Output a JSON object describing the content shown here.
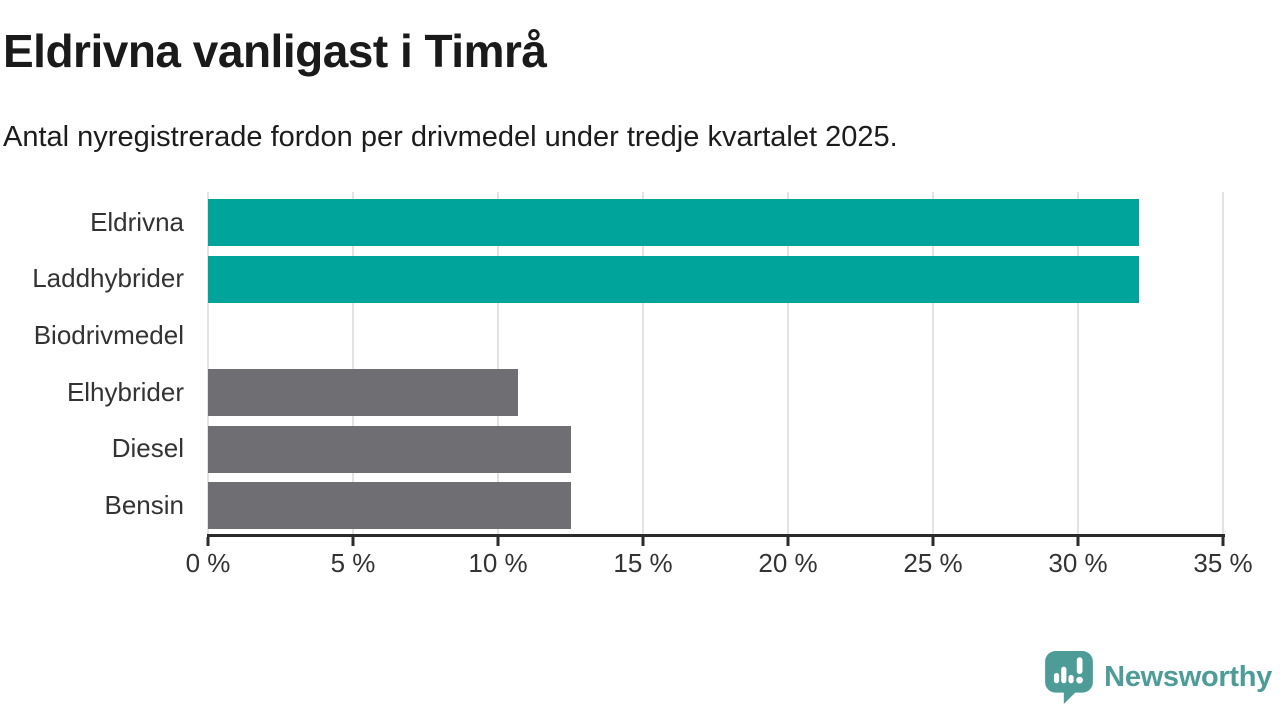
{
  "chart_data": {
    "type": "bar",
    "orientation": "horizontal",
    "title": "Eldrivna vanligast i Timrå",
    "subtitle": "Antal nyregistrerade fordon per drivmedel under tredje kvartalet 2025.",
    "categories": [
      "Eldrivna",
      "Laddhybrider",
      "Biodrivmedel",
      "Elhybrider",
      "Diesel",
      "Bensin"
    ],
    "values": [
      32.1,
      32.1,
      0,
      10.7,
      12.5,
      12.5
    ],
    "unit": "%",
    "xlim": [
      0,
      35
    ],
    "xticks": [
      0,
      5,
      10,
      15,
      20,
      25,
      30,
      35
    ],
    "xtick_labels": [
      "0 %",
      "5 %",
      "10 %",
      "15 %",
      "20 %",
      "25 %",
      "30 %",
      "35 %"
    ],
    "grid": true,
    "legend": false,
    "bar_colors": [
      "#00a49b",
      "#00a49b",
      "#6e6e73",
      "#6e6e73",
      "#6e6e73",
      "#6e6e73"
    ],
    "highlight_color": "#00a49b",
    "default_color": "#6e6e73",
    "gridline_color": "#e3e3e3",
    "axis_color": "#2b2b2b",
    "label_color": "#333333"
  },
  "branding": {
    "logo_text": "Newsworthy",
    "logo_color": "#4d9c97",
    "logo_icon": "newsworthy-speech-bubble-bar-chart-icon"
  }
}
